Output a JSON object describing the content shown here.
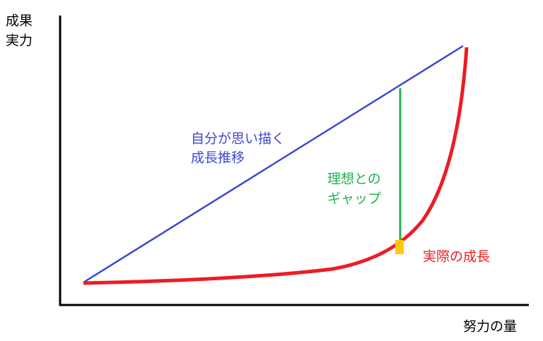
{
  "y_axis_label": [
    "成果",
    "実力"
  ],
  "x_axis_label": "努力の量",
  "ideal_label": [
    "自分が思い描く",
    "成長推移"
  ],
  "gap_label": [
    "理想との",
    "ギャップ"
  ],
  "actual_label": "実際の成長"
}
